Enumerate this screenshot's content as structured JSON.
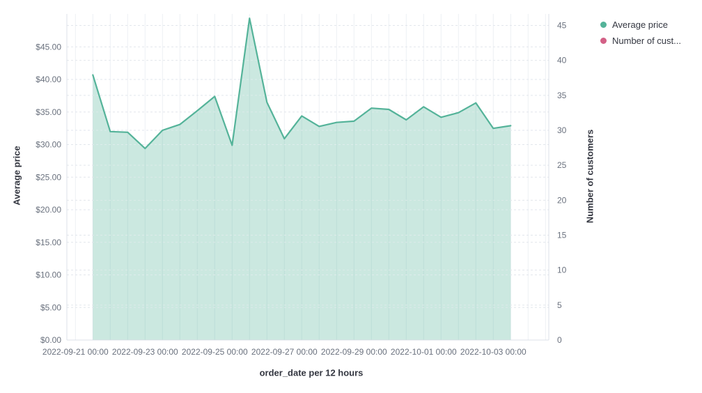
{
  "legend": {
    "items": [
      {
        "label": "Average price",
        "color": "#54B399"
      },
      {
        "label": "Number of cust...",
        "color": "#D36086"
      }
    ]
  },
  "chart_data": {
    "type": "area",
    "title": "",
    "interval": "12h",
    "grid": true,
    "legend_position": "top-right",
    "x_axis": {
      "label": "order_date per 12 hours",
      "tick_labels": [
        "2022-09-21 00:00",
        "2022-09-23 00:00",
        "2022-09-25 00:00",
        "2022-09-27 00:00",
        "2022-09-29 00:00",
        "2022-10-01 00:00",
        "2022-10-03 00:00"
      ]
    },
    "y_left": {
      "title": "Average price",
      "min": 0,
      "max": 45,
      "tick_step": 5,
      "tick_labels": [
        "$0.00",
        "$5.00",
        "$10.00",
        "$15.00",
        "$20.00",
        "$25.00",
        "$30.00",
        "$35.00",
        "$40.00",
        "$45.00"
      ]
    },
    "y_right": {
      "title": "Number of customers",
      "min": 0,
      "max": 45,
      "tick_step": 5,
      "tick_labels": [
        "0",
        "5",
        "10",
        "15",
        "20",
        "25",
        "30",
        "35",
        "40",
        "45"
      ]
    },
    "series": [
      {
        "name": "Average price",
        "type": "area",
        "axis": "left",
        "color": "#54B399",
        "fill_opacity": 0.3,
        "x": [
          "2022-09-21 12:00",
          "2022-09-22 00:00",
          "2022-09-22 12:00",
          "2022-09-23 00:00",
          "2022-09-23 12:00",
          "2022-09-24 00:00",
          "2022-09-24 12:00",
          "2022-09-25 00:00",
          "2022-09-25 12:00",
          "2022-09-26 00:00",
          "2022-09-26 12:00",
          "2022-09-27 00:00",
          "2022-09-27 12:00",
          "2022-09-28 00:00",
          "2022-09-28 12:00",
          "2022-09-29 00:00",
          "2022-09-29 12:00",
          "2022-09-30 00:00",
          "2022-09-30 12:00",
          "2022-10-01 00:00",
          "2022-10-01 12:00",
          "2022-10-02 00:00",
          "2022-10-02 12:00",
          "2022-10-03 00:00",
          "2022-10-03 12:00"
        ],
        "values": [
          40.7,
          32.0,
          31.9,
          29.4,
          32.2,
          33.1,
          35.2,
          37.4,
          29.9,
          49.4,
          36.5,
          30.9,
          34.4,
          32.8,
          33.4,
          33.6,
          35.6,
          35.4,
          33.8,
          35.8,
          34.2,
          34.9,
          36.4,
          32.5,
          32.9
        ]
      }
    ],
    "colors": {
      "grid_vertical": "#edf0f4",
      "grid_horizontal": "#e2e6ec",
      "axis_line": "#d7dce4",
      "tick_text": "#69707D"
    }
  }
}
